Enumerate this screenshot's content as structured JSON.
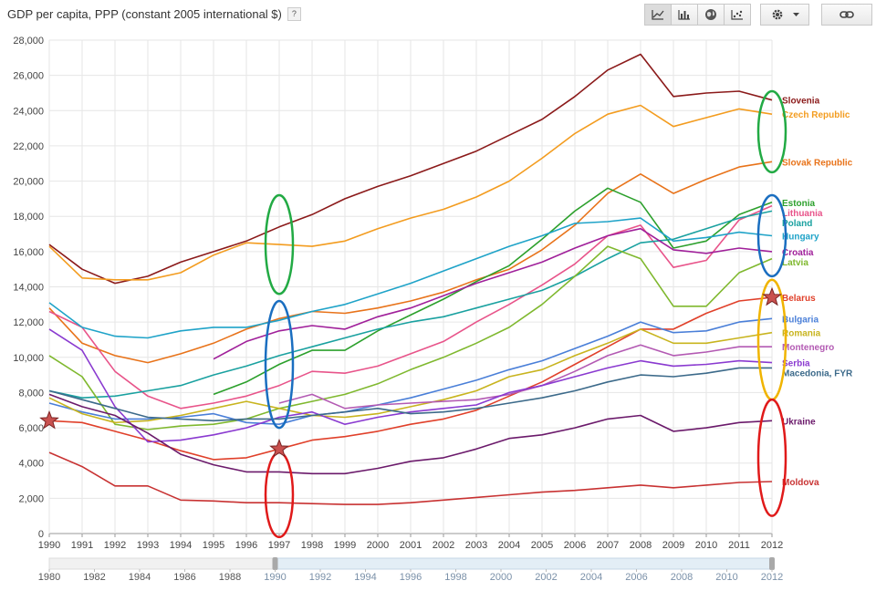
{
  "header": {
    "title": "GDP per capita, PPP (constant 2005 international $)",
    "help_label": "?"
  },
  "toolbar": {
    "icons": [
      "line-chart-icon",
      "bar-chart-icon",
      "globe-icon",
      "scatter-chart-icon"
    ],
    "gear_icon": "gear-icon",
    "dropdown_icon": "caret-down-icon",
    "link_icon": "link-icon"
  },
  "colors": {
    "grid": "#e6e6e6",
    "axis_text": "#444444"
  },
  "chart_data": {
    "type": "line",
    "title": "GDP per capita, PPP (constant 2005 international $)",
    "xlabel": "",
    "ylabel": "",
    "xlim": [
      1990,
      2012
    ],
    "ylim": [
      0,
      28000
    ],
    "yticks": [
      0,
      2000,
      4000,
      6000,
      8000,
      10000,
      12000,
      14000,
      16000,
      18000,
      20000,
      22000,
      24000,
      26000,
      28000
    ],
    "ytick_labels": [
      "0",
      "2,000",
      "4,000",
      "6,000",
      "8,000",
      "10,000",
      "12,000",
      "14,000",
      "16,000",
      "18,000",
      "20,000",
      "22,000",
      "24,000",
      "26,000",
      "28,000"
    ],
    "x": [
      1990,
      1991,
      1992,
      1993,
      1994,
      1995,
      1996,
      1997,
      1998,
      1999,
      2000,
      2001,
      2002,
      2003,
      2004,
      2005,
      2006,
      2007,
      2008,
      2009,
      2010,
      2011,
      2012
    ],
    "grid": true,
    "legend": "labels at right end of lines",
    "series": [
      {
        "name": "Slovenia",
        "color": "#8b1a1a",
        "values": [
          16400,
          15000,
          14200,
          14600,
          15400,
          16000,
          16600,
          17400,
          18100,
          19000,
          19700,
          20300,
          21000,
          21700,
          22600,
          23500,
          24800,
          26300,
          27200,
          24800,
          25000,
          25100,
          24600
        ]
      },
      {
        "name": "Czech Republic",
        "color": "#f39c1f",
        "values": [
          16300,
          14500,
          14400,
          14400,
          14800,
          15800,
          16500,
          16400,
          16300,
          16600,
          17300,
          17900,
          18400,
          19100,
          20000,
          21300,
          22700,
          23800,
          24300,
          23100,
          23600,
          24100,
          23800
        ]
      },
      {
        "name": "Slovak Republic",
        "color": "#e8731a",
        "values": [
          12800,
          10800,
          10100,
          9700,
          10200,
          10800,
          11600,
          12200,
          12600,
          12500,
          12800,
          13200,
          13700,
          14400,
          15000,
          16100,
          17500,
          19300,
          20400,
          19300,
          20100,
          20800,
          21100
        ]
      },
      {
        "name": "Estonia",
        "color": "#2ca02c",
        "values": [
          null,
          null,
          null,
          null,
          null,
          7900,
          8600,
          9600,
          10400,
          10400,
          11500,
          12400,
          13300,
          14300,
          15200,
          16700,
          18300,
          19600,
          18800,
          16200,
          16600,
          18100,
          18800
        ]
      },
      {
        "name": "Lithuania",
        "color": "#e8548a",
        "values": [
          12600,
          11700,
          9200,
          7800,
          7100,
          7400,
          7800,
          8400,
          9200,
          9100,
          9500,
          10200,
          10900,
          12000,
          13000,
          14100,
          15300,
          16900,
          17500,
          15100,
          15500,
          17800,
          18600
        ]
      },
      {
        "name": "Poland",
        "color": "#1aa1a0",
        "values": [
          8100,
          7700,
          7800,
          8100,
          8400,
          9000,
          9500,
          10100,
          10600,
          11100,
          11600,
          12000,
          12300,
          12800,
          13300,
          13800,
          14600,
          15600,
          16500,
          16700,
          17300,
          17900,
          18300
        ]
      },
      {
        "name": "Hungary",
        "color": "#1fa3c8",
        "values": [
          13100,
          11700,
          11200,
          11100,
          11500,
          11700,
          11700,
          12100,
          12600,
          13000,
          13600,
          14200,
          14900,
          15600,
          16300,
          16900,
          17600,
          17700,
          17900,
          16600,
          16800,
          17100,
          16900
        ]
      },
      {
        "name": "Croatia",
        "color": "#a0209a",
        "values": [
          null,
          null,
          null,
          null,
          null,
          9900,
          10900,
          11500,
          11800,
          11600,
          12300,
          12800,
          13500,
          14200,
          14800,
          15400,
          16200,
          16900,
          17300,
          16100,
          15900,
          16200,
          16000
        ]
      },
      {
        "name": "Latvia",
        "color": "#7fb82e",
        "values": [
          10100,
          8900,
          6200,
          5900,
          6100,
          6200,
          6500,
          7100,
          7500,
          7900,
          8500,
          9300,
          10000,
          10800,
          11700,
          13000,
          14600,
          16300,
          15600,
          12900,
          12900,
          14800,
          15600
        ]
      },
      {
        "name": "Belarus",
        "color": "#e0402a",
        "values": [
          6400,
          6300,
          5800,
          5300,
          4700,
          4200,
          4300,
          4800,
          5300,
          5500,
          5800,
          6200,
          6500,
          7000,
          7800,
          8600,
          9600,
          10600,
          11600,
          11600,
          12500,
          13200,
          13400
        ]
      },
      {
        "name": "Bulgaria",
        "color": "#4a7fd8",
        "values": [
          7400,
          6900,
          6500,
          6500,
          6600,
          6800,
          6300,
          6200,
          6700,
          6900,
          7300,
          7700,
          8200,
          8700,
          9300,
          9800,
          10500,
          11200,
          12000,
          11400,
          11500,
          12000,
          12200
        ]
      },
      {
        "name": "Romania",
        "color": "#c8b41e",
        "values": [
          7700,
          6800,
          6300,
          6400,
          6700,
          7100,
          7500,
          7100,
          6700,
          6600,
          6800,
          7200,
          7600,
          8100,
          8900,
          9300,
          10100,
          10800,
          11600,
          10800,
          10800,
          11100,
          11400
        ]
      },
      {
        "name": "Montenegro",
        "color": "#b35ab3",
        "values": [
          null,
          null,
          null,
          null,
          null,
          null,
          null,
          7400,
          7900,
          7100,
          7300,
          7400,
          7500,
          7600,
          7900,
          8400,
          9200,
          10100,
          10700,
          10100,
          10300,
          10600,
          10600
        ]
      },
      {
        "name": "Serbia",
        "color": "#8a3ad0",
        "values": [
          11600,
          10400,
          7200,
          5200,
          5300,
          5600,
          6000,
          6600,
          6900,
          6200,
          6600,
          6900,
          7100,
          7300,
          8000,
          8400,
          8900,
          9400,
          9800,
          9500,
          9600,
          9800,
          9700
        ]
      },
      {
        "name": "Macedonia, FYR",
        "color": "#3c6a8a",
        "values": [
          8100,
          7600,
          7100,
          6600,
          6500,
          6400,
          6500,
          6500,
          6700,
          6900,
          7100,
          6800,
          6900,
          7100,
          7400,
          7700,
          8100,
          8600,
          9000,
          8900,
          9100,
          9400,
          9400
        ]
      },
      {
        "name": "Ukraine",
        "color": "#6b1a6b",
        "values": [
          7900,
          7200,
          6700,
          5700,
          4500,
          3900,
          3500,
          3500,
          3400,
          3400,
          3700,
          4100,
          4300,
          4800,
          5400,
          5600,
          6000,
          6500,
          6700,
          5800,
          6000,
          6300,
          6400
        ]
      },
      {
        "name": "Moldova",
        "color": "#c83232",
        "values": [
          4600,
          3800,
          2700,
          2700,
          1900,
          1850,
          1750,
          1750,
          1700,
          1650,
          1650,
          1750,
          1900,
          2050,
          2200,
          2350,
          2450,
          2600,
          2750,
          2600,
          2750,
          2900,
          2950
        ]
      }
    ],
    "x_tick_labels": [
      "1990",
      "1991",
      "1992",
      "1993",
      "1994",
      "1995",
      "1996",
      "1997",
      "1998",
      "1999",
      "2000",
      "2001",
      "2002",
      "2003",
      "2004",
      "2005",
      "2006",
      "2007",
      "2008",
      "2009",
      "2010",
      "2011",
      "2012"
    ],
    "timeline": {
      "labels": [
        "1980",
        "1982",
        "1984",
        "1986",
        "1988",
        "1990",
        "1992",
        "1994",
        "1996",
        "1998",
        "2000",
        "2002",
        "2004",
        "2006",
        "2008",
        "2010",
        "2012"
      ],
      "range": [
        1980,
        2012
      ],
      "selected": [
        1990,
        2012
      ]
    },
    "annotations": {
      "ellipses": [
        {
          "color": "#22aa44",
          "year": 1997,
          "y_center": 16400,
          "y_half": 2800
        },
        {
          "color": "#1a6ec0",
          "year": 1997,
          "y_center": 9600,
          "y_half": 3600
        },
        {
          "color": "#e01a1a",
          "year": 1997,
          "y_center": 2200,
          "y_half": 2400
        },
        {
          "color": "#22aa44",
          "year": 2012,
          "y_center": 22800,
          "y_half": 2300
        },
        {
          "color": "#1a6ec0",
          "year": 2012,
          "y_center": 16900,
          "y_half": 2300
        },
        {
          "color": "#f0b400",
          "year": 2012,
          "y_center": 11000,
          "y_half": 3400
        },
        {
          "color": "#e01a1a",
          "year": 2012,
          "y_center": 4300,
          "y_half": 3300
        }
      ],
      "stars": [
        {
          "year": 1990,
          "value": 6400
        },
        {
          "year": 1997,
          "value": 4800
        },
        {
          "year": 2012,
          "value": 13400
        }
      ]
    }
  }
}
